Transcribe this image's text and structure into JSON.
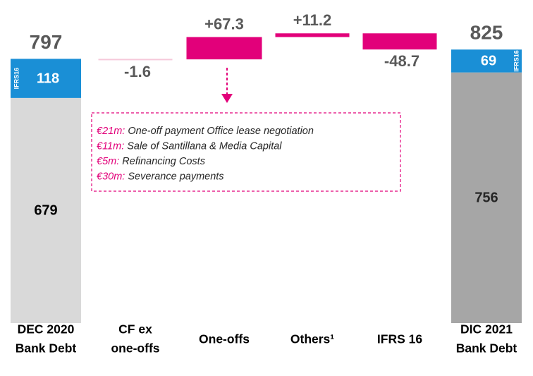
{
  "chart_data": {
    "type": "waterfall",
    "categories": [
      [
        "DEC 2020",
        "Bank Debt"
      ],
      [
        "CF ex",
        "one-offs"
      ],
      [
        "One-offs"
      ],
      [
        "Others¹"
      ],
      [
        "IFRS 16"
      ],
      [
        "DIC 2021",
        "Bank Debt"
      ]
    ],
    "start": {
      "total": 797,
      "segments": [
        679,
        118
      ],
      "colors": [
        "#d9d9d9",
        "#1a8fd6"
      ]
    },
    "steps": {
      "values": [
        -1.6,
        67.3,
        11.2,
        -48.7
      ],
      "value_labels": [
        "-1.6",
        "+67.3",
        "+11.2",
        "-48.7"
      ],
      "colors": [
        "#f6c9da",
        "#e2007a",
        "#e2007a",
        "#e2007a"
      ]
    },
    "end": {
      "total": 825,
      "segments": [
        756,
        69
      ],
      "colors": [
        "#a6a6a6",
        "#1a8fd6"
      ]
    },
    "segment_label": "IFRS16",
    "annotation": [
      {
        "amount": "€21m:",
        "text": "One-off payment Office lease negotiation"
      },
      {
        "amount": "€11m:",
        "text": "Sale of Santillana & Media Capital"
      },
      {
        "amount": "€5m:",
        "text": "Refinancing Costs"
      },
      {
        "amount": "€30m:",
        "text": "Severance payments"
      }
    ]
  }
}
